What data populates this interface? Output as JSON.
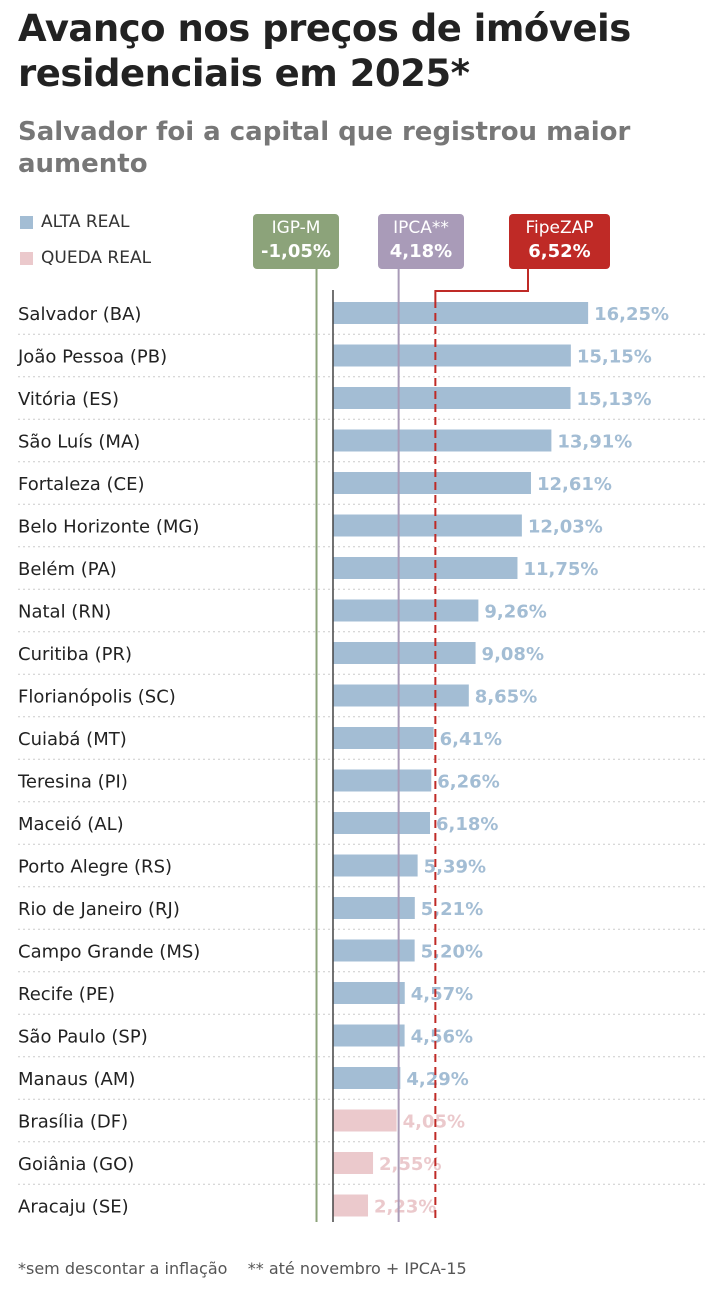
{
  "title": "Avanço nos preços de imóveis residenciais em 2025*",
  "subtitle": "Salvador foi a capital que registrou maior aumento",
  "footer": "*sem descontar a inflação    ** até novembro + IPCA-15",
  "chart_data": {
    "type": "bar",
    "orientation": "horizontal",
    "legend": [
      {
        "label": "ALTA REAL",
        "color": "#a3bdd4"
      },
      {
        "label": "QUEDA REAL",
        "color": "#ebc9cc"
      }
    ],
    "reference_lines": [
      {
        "label": "IGP-M",
        "value_label": "-1,05%",
        "value": -1.05,
        "color": "#8ca37a"
      },
      {
        "label": "IPCA**",
        "value_label": "4,18%",
        "value": 4.18,
        "color": "#a99bb8"
      },
      {
        "label": "FipeZAP",
        "value_label": "6,52%",
        "value": 6.52,
        "color": "#bf2a26"
      }
    ],
    "categories": [
      "Salvador (BA)",
      "João Pessoa (PB)",
      "Vitória (ES)",
      "São Luís (MA)",
      "Fortaleza (CE)",
      "Belo Horizonte (MG)",
      "Belém (PA)",
      "Natal (RN)",
      "Curitiba (PR)",
      "Florianópolis (SC)",
      "Cuiabá (MT)",
      "Teresina (PI)",
      "Maceió (AL)",
      "Porto Alegre (RS)",
      "Rio de Janeiro (RJ)",
      "Campo Grande (MS)",
      "Recife (PE)",
      "São Paulo (SP)",
      "Manaus (AM)",
      "Brasília (DF)",
      "Goiânia (GO)",
      "Aracaju (SE)"
    ],
    "values": [
      16.25,
      15.15,
      15.13,
      13.91,
      12.61,
      12.03,
      11.75,
      9.26,
      9.08,
      8.65,
      6.41,
      6.26,
      6.18,
      5.39,
      5.21,
      5.2,
      4.57,
      4.56,
      4.29,
      4.05,
      2.55,
      2.23
    ],
    "labels": [
      "16,25%",
      "15,15%",
      "15,13%",
      "13,91%",
      "12,61%",
      "12,03%",
      "11,75%",
      "9,26%",
      "9,08%",
      "8,65%",
      "6,41%",
      "6,26%",
      "6,18%",
      "5,39%",
      "5,21%",
      "5,20%",
      "4,57%",
      "4,56%",
      "4,29%",
      "4,05%",
      "2,55%",
      "2,23%"
    ],
    "real_change": [
      "alta",
      "alta",
      "alta",
      "alta",
      "alta",
      "alta",
      "alta",
      "alta",
      "alta",
      "alta",
      "alta",
      "alta",
      "alta",
      "alta",
      "alta",
      "alta",
      "alta",
      "alta",
      "alta",
      "queda",
      "queda",
      "queda"
    ]
  }
}
